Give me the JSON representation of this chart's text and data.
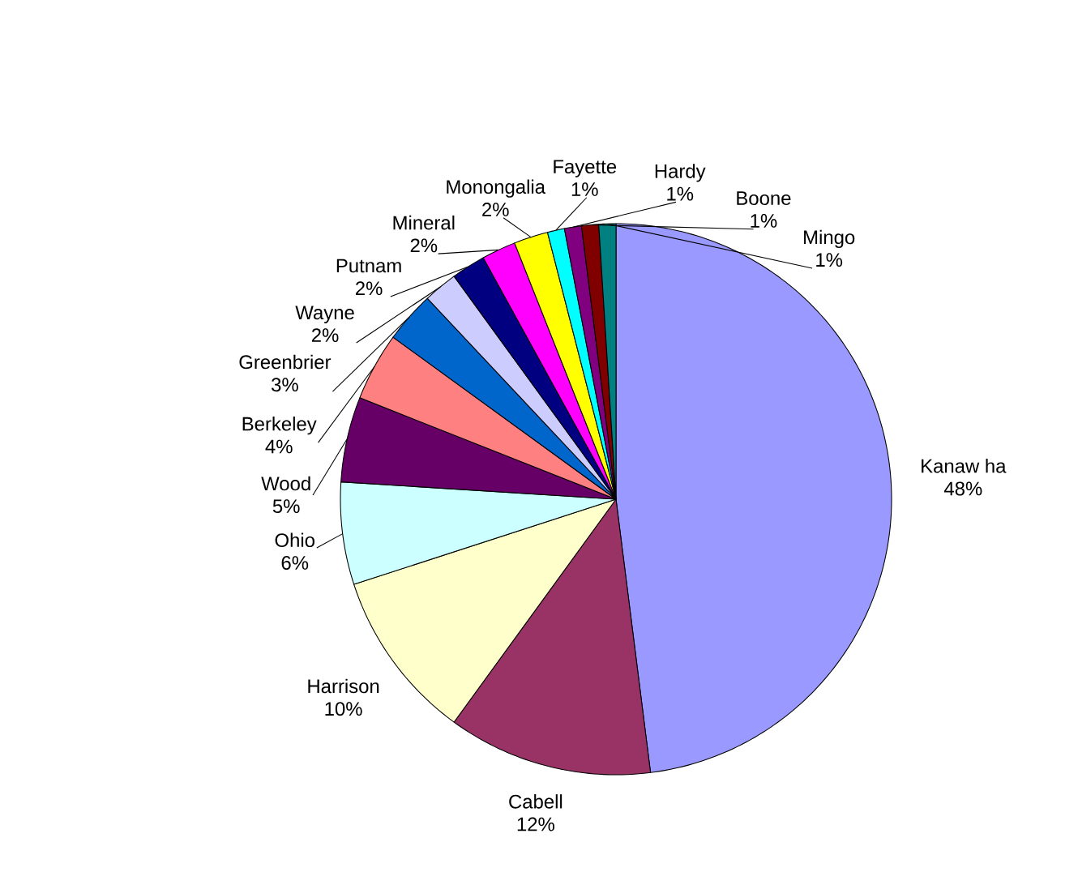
{
  "chart_data": {
    "type": "pie",
    "categories": [
      "Kanaw ha",
      "Cabell",
      "Harrison",
      "Ohio",
      "Wood",
      "Berkeley",
      "Greenbrier",
      "Wayne",
      "Putnam",
      "Mineral",
      "Monongalia",
      "Fayette",
      "Hardy",
      "Boone",
      "Mingo"
    ],
    "values": [
      48,
      12,
      10,
      6,
      5,
      4,
      3,
      2,
      2,
      2,
      2,
      1,
      1,
      1,
      1
    ],
    "value_labels": [
      "48%",
      "12%",
      "10%",
      "6%",
      "5%",
      "4%",
      "3%",
      "2%",
      "2%",
      "2%",
      "2%",
      "1%",
      "1%",
      "1%",
      "1%"
    ],
    "colors": [
      "#9999ff",
      "#993366",
      "#ffffcc",
      "#ccffff",
      "#660066",
      "#ff8080",
      "#0066cc",
      "#ccccff",
      "#000080",
      "#ff00ff",
      "#ffff00",
      "#00ffff",
      "#800080",
      "#800000",
      "#008080"
    ]
  }
}
